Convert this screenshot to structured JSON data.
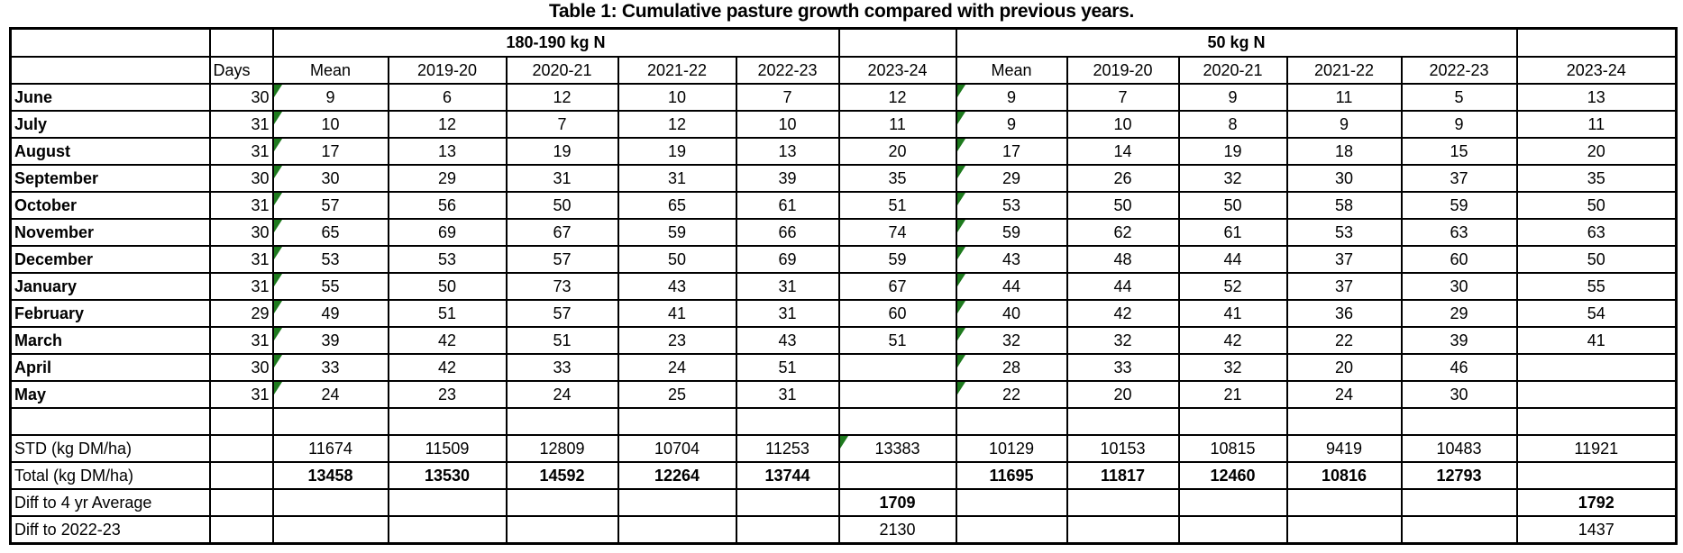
{
  "title": "Table 1: Cumulative pasture growth compared with previous years.",
  "groups": [
    {
      "label": "180-190 kg N"
    },
    {
      "label": "50 kg N"
    }
  ],
  "header": {
    "days_label": "Days",
    "years": [
      "Mean",
      "2019-20",
      "2020-21",
      "2021-22",
      "2022-23",
      "2023-24"
    ]
  },
  "colors": {
    "flag_green": "#1e7a1e",
    "diff_green": "#3d6b35",
    "border_black": "#000000"
  },
  "rows": [
    {
      "label": "June",
      "days": "30",
      "label_bold": true,
      "flag_cols": [
        0,
        6
      ],
      "values": [
        "9",
        "6",
        "12",
        "10",
        "7",
        "12",
        "9",
        "7",
        "9",
        "11",
        "5",
        "13"
      ]
    },
    {
      "label": "July",
      "days": "31",
      "label_bold": true,
      "flag_cols": [
        0,
        6
      ],
      "values": [
        "10",
        "12",
        "7",
        "12",
        "10",
        "11",
        "9",
        "10",
        "8",
        "9",
        "9",
        "11"
      ]
    },
    {
      "label": "August",
      "days": "31",
      "label_bold": true,
      "flag_cols": [
        0,
        6
      ],
      "values": [
        "17",
        "13",
        "19",
        "19",
        "13",
        "20",
        "17",
        "14",
        "19",
        "18",
        "15",
        "20"
      ]
    },
    {
      "label": "September",
      "days": "30",
      "label_bold": true,
      "flag_cols": [
        0,
        6
      ],
      "values": [
        "30",
        "29",
        "31",
        "31",
        "39",
        "35",
        "29",
        "26",
        "32",
        "30",
        "37",
        "35"
      ]
    },
    {
      "label": "October",
      "days": "31",
      "label_bold": true,
      "flag_cols": [
        0,
        6
      ],
      "values": [
        "57",
        "56",
        "50",
        "65",
        "61",
        "51",
        "53",
        "50",
        "50",
        "58",
        "59",
        "50"
      ]
    },
    {
      "label": "November",
      "days": "30",
      "label_bold": true,
      "flag_cols": [
        0,
        6
      ],
      "values": [
        "65",
        "69",
        "67",
        "59",
        "66",
        "74",
        "59",
        "62",
        "61",
        "53",
        "63",
        "63"
      ]
    },
    {
      "label": "December",
      "days": "31",
      "label_bold": true,
      "flag_cols": [
        0,
        6
      ],
      "values": [
        "53",
        "53",
        "57",
        "50",
        "69",
        "59",
        "43",
        "48",
        "44",
        "37",
        "60",
        "50"
      ]
    },
    {
      "label": "January",
      "days": "31",
      "label_bold": true,
      "flag_cols": [
        0,
        6
      ],
      "values": [
        "55",
        "50",
        "73",
        "43",
        "31",
        "67",
        "44",
        "44",
        "52",
        "37",
        "30",
        "55"
      ]
    },
    {
      "label": "February",
      "days": "29",
      "label_bold": true,
      "flag_cols": [
        0,
        6
      ],
      "values": [
        "49",
        "51",
        "57",
        "41",
        "31",
        "60",
        "40",
        "42",
        "41",
        "36",
        "29",
        "54"
      ]
    },
    {
      "label": "March",
      "days": "31",
      "label_bold": true,
      "flag_cols": [
        0,
        6
      ],
      "values": [
        "39",
        "42",
        "51",
        "23",
        "43",
        "51",
        "32",
        "32",
        "42",
        "22",
        "39",
        "41"
      ]
    },
    {
      "label": "April",
      "days": "30",
      "label_bold": true,
      "flag_cols": [
        0,
        6
      ],
      "values": [
        "33",
        "42",
        "33",
        "24",
        "51",
        "",
        "28",
        "33",
        "32",
        "20",
        "46",
        ""
      ]
    },
    {
      "label": "May",
      "days": "31",
      "label_bold": true,
      "flag_cols": [
        0,
        6
      ],
      "values": [
        "24",
        "23",
        "24",
        "25",
        "31",
        "",
        "22",
        "20",
        "21",
        "24",
        "30",
        ""
      ]
    },
    {
      "label": "",
      "days": "",
      "label_bold": false,
      "values": [
        "",
        "",
        "",
        "",
        "",
        "",
        "",
        "",
        "",
        "",
        "",
        ""
      ]
    },
    {
      "label": "STD (kg DM/ha)",
      "days": "",
      "label_bold": false,
      "flag_cols": [
        5
      ],
      "values": [
        "11674",
        "11509",
        "12809",
        "10704",
        "11253",
        "13383",
        "10129",
        "10153",
        "10815",
        "9419",
        "10483",
        "11921"
      ]
    },
    {
      "label": "Total (kg DM/ha)",
      "days": "",
      "label_bold": false,
      "bold_values": true,
      "values": [
        "13458",
        "13530",
        "14592",
        "12264",
        "13744",
        "",
        "11695",
        "11817",
        "12460",
        "10816",
        "12793",
        ""
      ]
    },
    {
      "label": "Diff to 4 yr Average",
      "days": "",
      "label_bold": false,
      "green_values": true,
      "values": [
        "",
        "",
        "",
        "",
        "",
        "1709",
        "",
        "",
        "",
        "",
        "",
        "1792"
      ]
    },
    {
      "label": "Diff to 2022-23",
      "days": "",
      "label_bold": false,
      "values": [
        "",
        "",
        "",
        "",
        "",
        "2130",
        "",
        "",
        "",
        "",
        "",
        "1437"
      ]
    }
  ]
}
